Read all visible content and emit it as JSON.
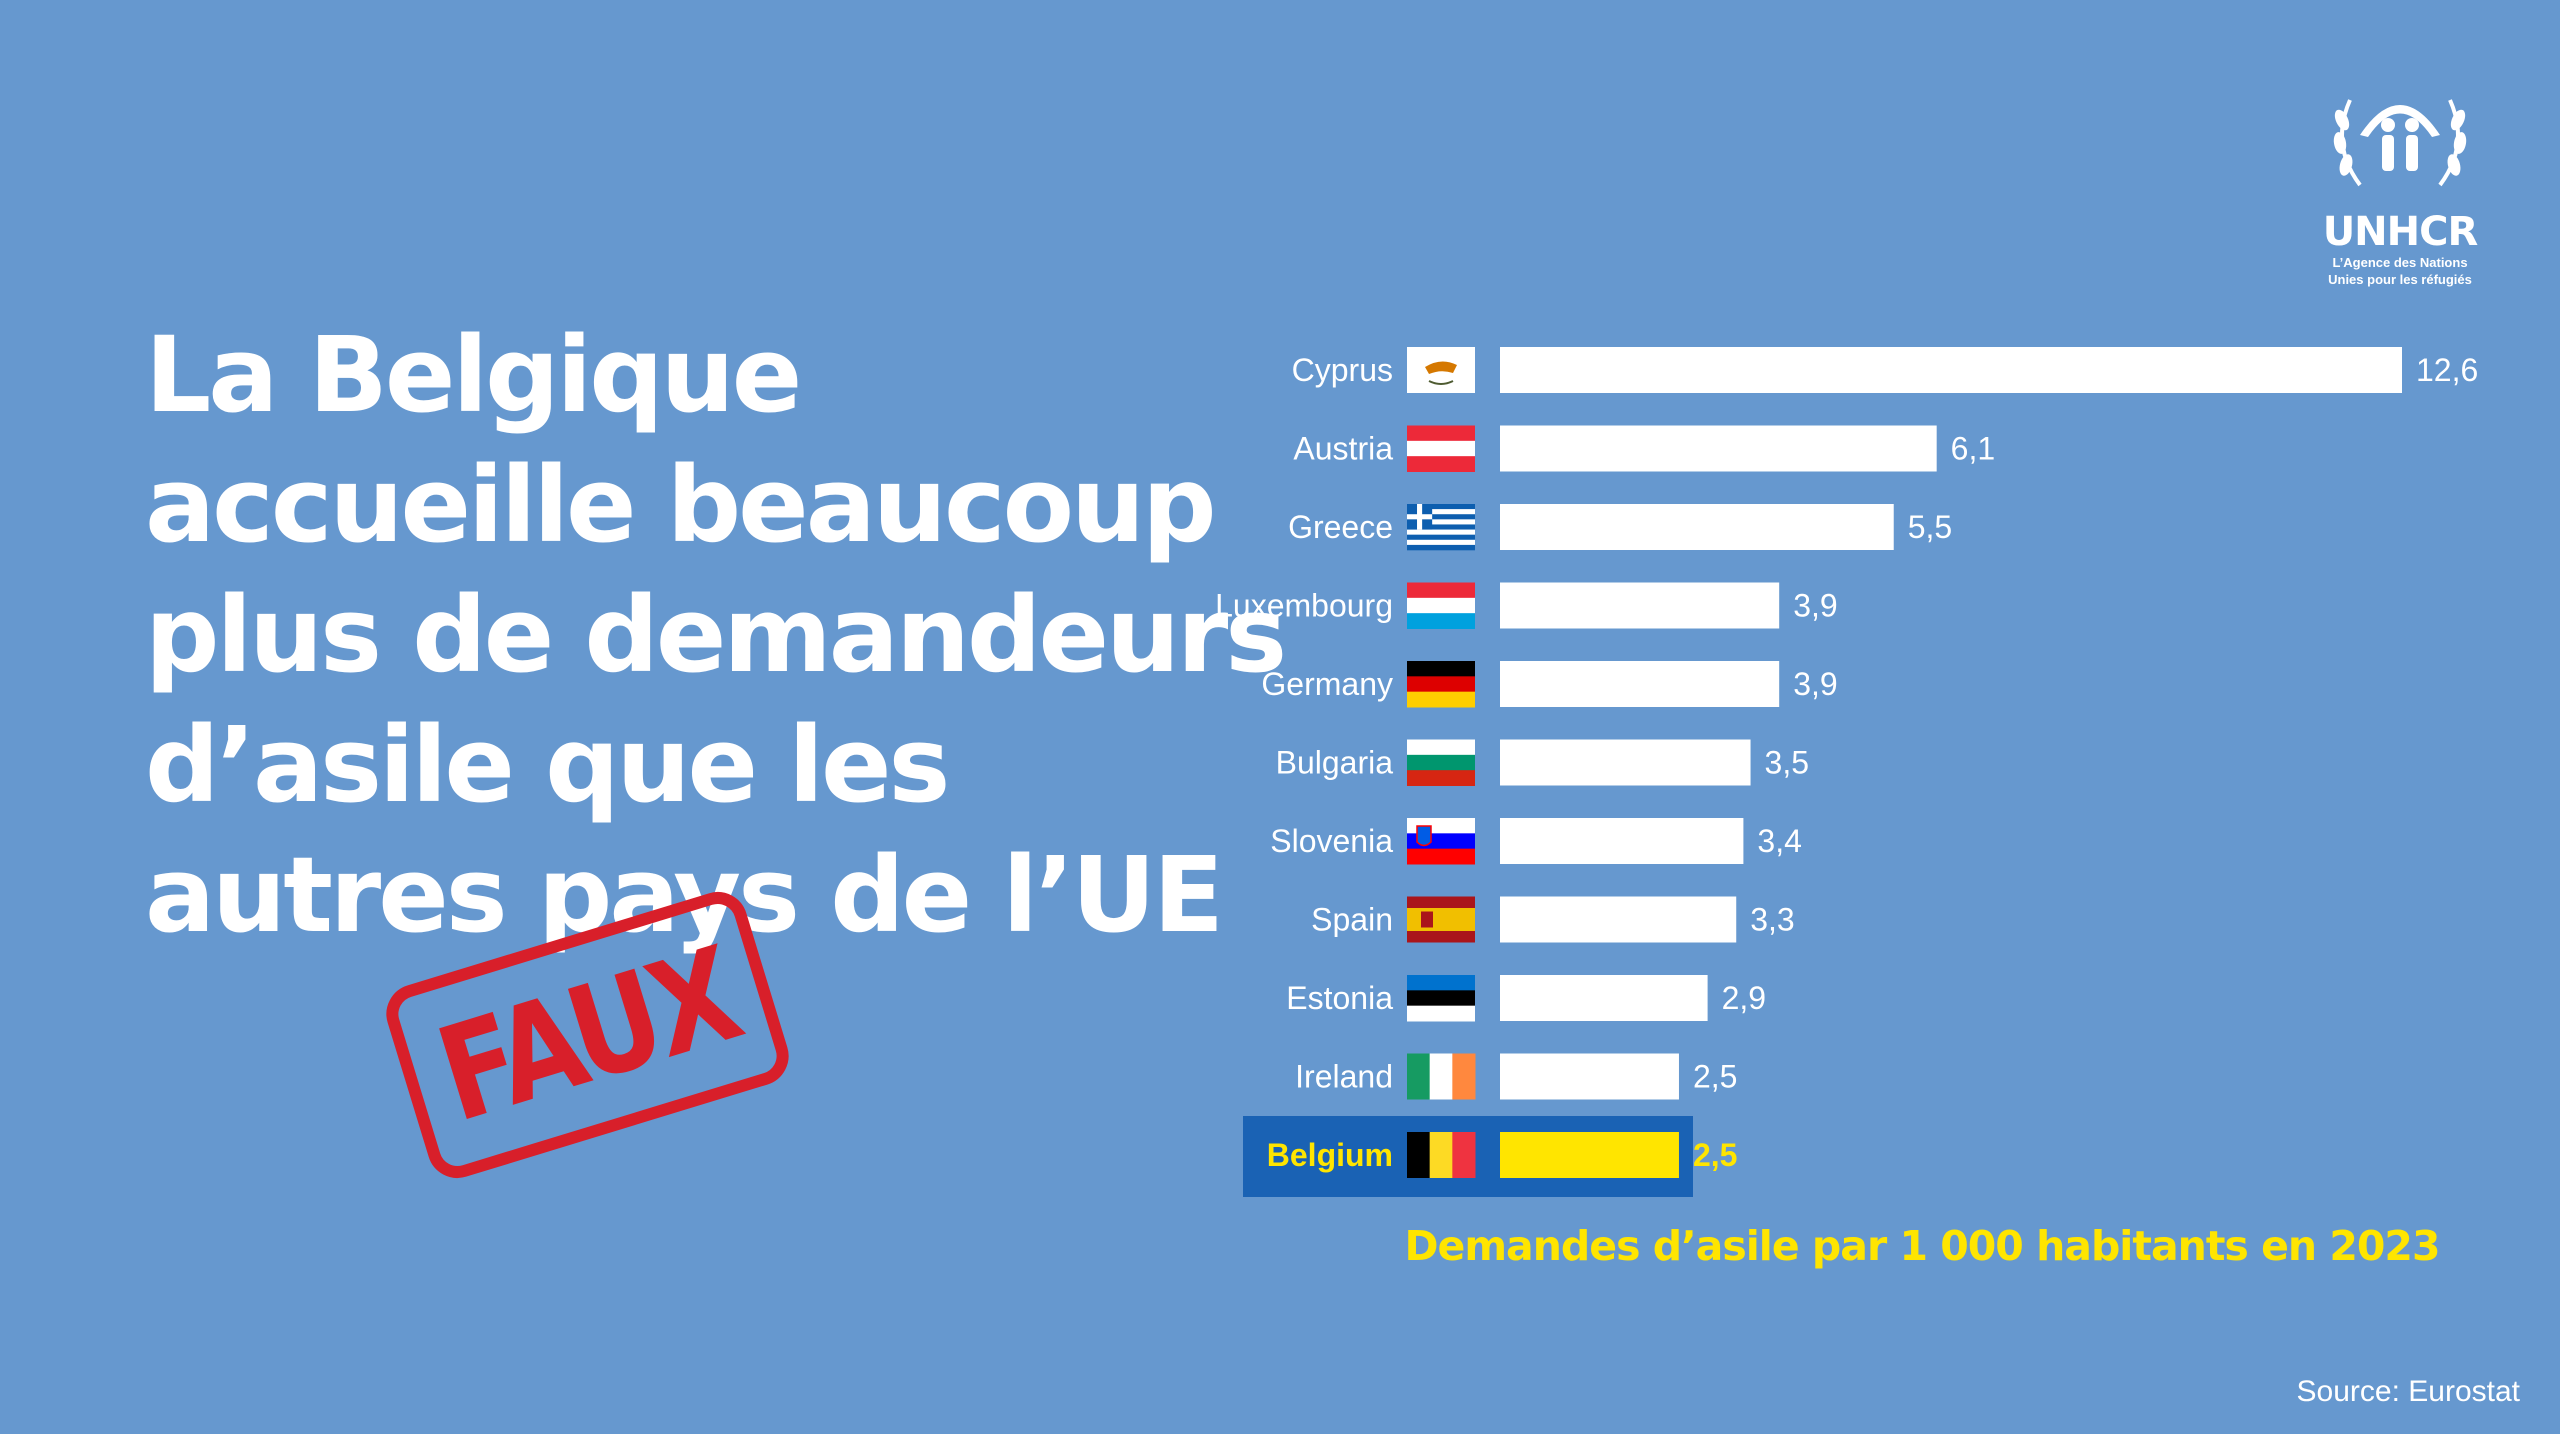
{
  "headline": {
    "lines": [
      "La Belgique",
      "accueille beaucoup",
      "plus de demandeurs",
      "d’asile que les",
      "autres pays de l’UE"
    ]
  },
  "stamp": {
    "label": "FAUX",
    "color": "#d81f2a"
  },
  "logo": {
    "icon": "unhcr-emblem-icon",
    "name": "UNHCR",
    "tagline_1": "L’Agence des Nations",
    "tagline_2": "Unies pour les réfugiés"
  },
  "source": "Source: Eurostat",
  "colors": {
    "background": "#6698cf",
    "bar": "#ffffff",
    "highlight_bar": "#ffe500",
    "highlight_band": "#1a62b4",
    "caption": "#ffe500"
  },
  "chart_data": {
    "type": "bar",
    "orientation": "horizontal",
    "categories": [
      "Cyprus",
      "Austria",
      "Greece",
      "Luxembourg",
      "Germany",
      "Bulgaria",
      "Slovenia",
      "Spain",
      "Estonia",
      "Ireland",
      "Belgium"
    ],
    "values": [
      12.6,
      6.1,
      5.5,
      3.9,
      3.9,
      3.5,
      3.4,
      3.3,
      2.9,
      2.5,
      2.5
    ],
    "value_labels": [
      "12,6",
      "6,1",
      "5,5",
      "3,9",
      "3,9",
      "3,5",
      "3,4",
      "3,3",
      "2,9",
      "2,5",
      "2,5"
    ],
    "highlighted_category": "Belgium",
    "flags": [
      "cyprus-flag-icon",
      "austria-flag-icon",
      "greece-flag-icon",
      "luxembourg-flag-icon",
      "germany-flag-icon",
      "bulgaria-flag-icon",
      "slovenia-flag-icon",
      "spain-flag-icon",
      "estonia-flag-icon",
      "ireland-flag-icon",
      "belgium-flag-icon"
    ],
    "caption": "Demandes d’asile par 1 000 habitants en 2023",
    "xlim": [
      0,
      12.6
    ]
  }
}
